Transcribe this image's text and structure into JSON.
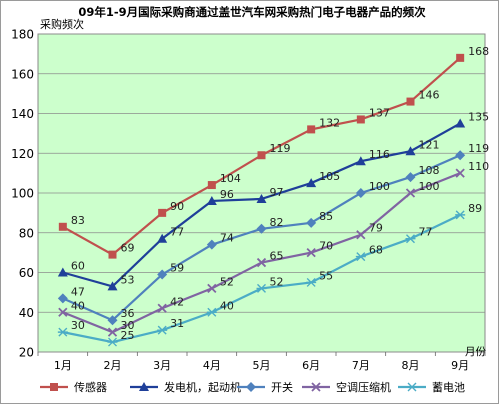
{
  "chart_data": {
    "type": "line",
    "title": "09年1-9月国际采购商通过盖世汽车网采购热门电子电器产品的频次",
    "ylabel": "采购频次",
    "xlabel": "月份",
    "ylim": [
      20,
      180
    ],
    "y_ticks": [
      20,
      40,
      60,
      80,
      100,
      120,
      140,
      160,
      180
    ],
    "grid": true,
    "legend_position": "bottom",
    "categories": [
      "1月",
      "2月",
      "3月",
      "4月",
      "5月",
      "6月",
      "7月",
      "8月",
      "9月"
    ],
    "series": [
      {
        "name": "传感器",
        "color": "#c0504d",
        "marker": "square",
        "values": [
          83,
          69,
          90,
          104,
          119,
          132,
          137,
          146,
          168
        ]
      },
      {
        "name": "发电机，起动机",
        "color": "#1f3f99",
        "marker": "triangle",
        "values": [
          60,
          53,
          77,
          96,
          97,
          105,
          116,
          121,
          135
        ]
      },
      {
        "name": "开关",
        "color": "#4f81bd",
        "marker": "diamond",
        "values": [
          47,
          36,
          59,
          74,
          82,
          85,
          100,
          108,
          119
        ]
      },
      {
        "name": "空调压缩机",
        "color": "#8064a2",
        "marker": "x",
        "values": [
          40,
          30,
          42,
          52,
          65,
          70,
          79,
          100,
          110
        ]
      },
      {
        "name": "蓄电池",
        "color": "#4bacc6",
        "marker": "star",
        "values": [
          30,
          25,
          31,
          40,
          52,
          55,
          68,
          77,
          89
        ]
      }
    ]
  }
}
